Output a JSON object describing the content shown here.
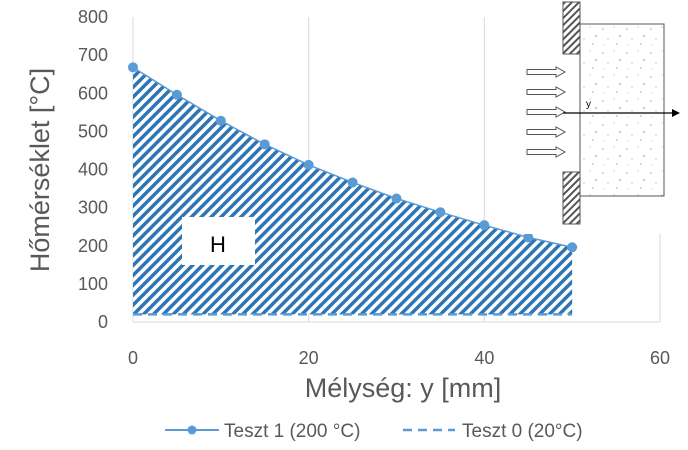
{
  "chart_data": {
    "type": "line",
    "xlabel": "Mélység: y [mm]",
    "ylabel": "Hőmérséklet [°C]",
    "xlim": [
      0,
      60
    ],
    "ylim": [
      0,
      800
    ],
    "xticks": [
      0,
      20,
      40,
      60
    ],
    "yticks": [
      0,
      100,
      200,
      300,
      400,
      500,
      600,
      700,
      800
    ],
    "grid": "vertical",
    "legend_position": "bottom",
    "series": [
      {
        "name": "Teszt 1 (200 °C)",
        "style": "solid line with circle markers",
        "color": "#5b9bd5",
        "x": [
          0,
          5,
          10,
          15,
          20,
          25,
          30,
          35,
          40,
          45,
          50
        ],
        "y": [
          668,
          596,
          528,
          466,
          412,
          366,
          324,
          288,
          254,
          222,
          196
        ]
      },
      {
        "name": "Teszt 0 (20°C)",
        "style": "dashed line",
        "color": "#5b9bd5",
        "x": [
          0,
          50
        ],
        "y": [
          20,
          20
        ]
      }
    ],
    "area_fill": {
      "label": "H",
      "pattern": "diagonal hatch",
      "between": [
        "Teszt 0 (20°C)",
        "Teszt 1 (200 °C)"
      ]
    },
    "inset": {
      "type": "diagram",
      "axis_label": "y",
      "arrow_count": 5
    }
  },
  "colors": {
    "series": "#5b9bd5",
    "hatch": "#2e75b6",
    "grid": "#d9d9d9",
    "text": "#595959"
  }
}
